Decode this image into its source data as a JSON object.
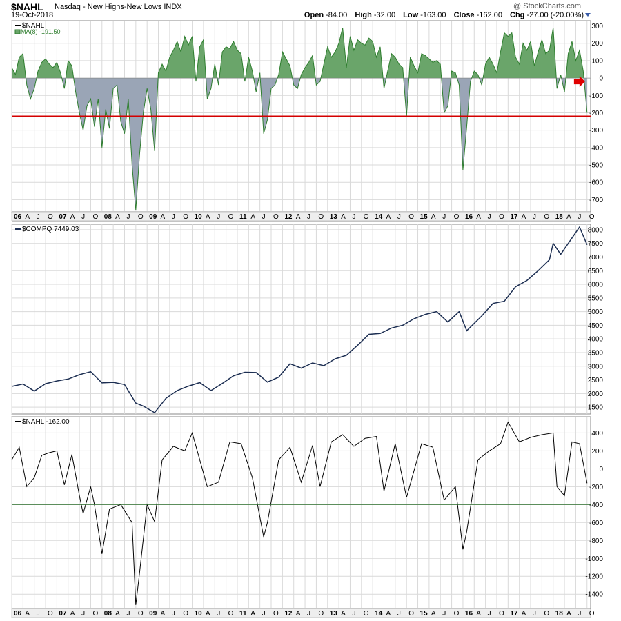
{
  "header": {
    "symbol": "$NAHL",
    "name": "Nasdaq - New Highs-New Lows INDX",
    "date": "19-Oct-2018",
    "credit": "@ StockCharts.com",
    "quote": {
      "open_label": "Open",
      "open": "-84.00",
      "high_label": "High",
      "high": "-32.00",
      "low_label": "Low",
      "low": "-163.00",
      "close_label": "Close",
      "close": "-162.00",
      "chg_label": "Chg",
      "chg": "-27.00 (-20.00%)"
    }
  },
  "x_axis": {
    "ticks": [
      "06",
      "A",
      "J",
      "O",
      "07",
      "A",
      "J",
      "O",
      "08",
      "A",
      "J",
      "O",
      "09",
      "A",
      "J",
      "O",
      "10",
      "A",
      "J",
      "O",
      "11",
      "A",
      "J",
      "O",
      "12",
      "A",
      "J",
      "O",
      "13",
      "A",
      "J",
      "O",
      "14",
      "A",
      "J",
      "O",
      "15",
      "A",
      "J",
      "O",
      "16",
      "A",
      "J",
      "O",
      "17",
      "A",
      "J",
      "O",
      "18",
      "A",
      "J",
      "O"
    ],
    "year_ticks": [
      "06",
      "07",
      "08",
      "09",
      "10",
      "11",
      "12",
      "13",
      "14",
      "15",
      "16",
      "17",
      "18"
    ]
  },
  "colors": {
    "positive_fill": "#6aa56a",
    "positive_line": "#2e7d2e",
    "negative_fill": "#9aa5b6",
    "negative_line": "#5a7a5a",
    "threshold_red": "#d40000",
    "compq_line": "#1c2e52",
    "threshold_green": "#2d6e2d",
    "arrow": "#e00000",
    "grid": "#d9d9d9"
  },
  "chart_data": [
    {
      "type": "area",
      "legend": "$NAHL",
      "legend2": "MA(8) -191.50",
      "series_note": "8-period moving average of $NAHL",
      "ylim": [
        -770,
        330
      ],
      "yticks": [
        300,
        200,
        100,
        0,
        -100,
        -200,
        -300,
        -400,
        -500,
        -600,
        -700
      ],
      "reference_line": -220,
      "last_value": -191.5,
      "points": [
        [
          "2006-01",
          60
        ],
        [
          "2006-02",
          20
        ],
        [
          "2006-03",
          120
        ],
        [
          "2006-04",
          140
        ],
        [
          "2006-05",
          -40
        ],
        [
          "2006-06",
          -120
        ],
        [
          "2006-07",
          -60
        ],
        [
          "2006-08",
          40
        ],
        [
          "2006-09",
          90
        ],
        [
          "2006-10",
          110
        ],
        [
          "2006-11",
          80
        ],
        [
          "2006-12",
          60
        ],
        [
          "2007-01",
          90
        ],
        [
          "2007-02",
          30
        ],
        [
          "2007-03",
          -60
        ],
        [
          "2007-04",
          100
        ],
        [
          "2007-05",
          70
        ],
        [
          "2007-06",
          -80
        ],
        [
          "2007-07",
          -200
        ],
        [
          "2007-08",
          -300
        ],
        [
          "2007-09",
          -160
        ],
        [
          "2007-10",
          -120
        ],
        [
          "2007-11",
          -280
        ],
        [
          "2007-12",
          -120
        ],
        [
          "2008-01",
          -400
        ],
        [
          "2008-02",
          -180
        ],
        [
          "2008-03",
          -290
        ],
        [
          "2008-04",
          -60
        ],
        [
          "2008-05",
          -40
        ],
        [
          "2008-06",
          -250
        ],
        [
          "2008-07",
          -320
        ],
        [
          "2008-08",
          -120
        ],
        [
          "2008-09",
          -500
        ],
        [
          "2008-10",
          -760
        ],
        [
          "2008-11",
          -440
        ],
        [
          "2008-12",
          -200
        ],
        [
          "2009-01",
          -60
        ],
        [
          "2009-02",
          -180
        ],
        [
          "2009-03",
          -420
        ],
        [
          "2009-04",
          30
        ],
        [
          "2009-05",
          80
        ],
        [
          "2009-06",
          40
        ],
        [
          "2009-07",
          120
        ],
        [
          "2009-08",
          160
        ],
        [
          "2009-09",
          210
        ],
        [
          "2009-10",
          150
        ],
        [
          "2009-11",
          240
        ],
        [
          "2009-12",
          190
        ],
        [
          "2010-01",
          240
        ],
        [
          "2010-02",
          -20
        ],
        [
          "2010-03",
          180
        ],
        [
          "2010-04",
          220
        ],
        [
          "2010-05",
          -120
        ],
        [
          "2010-06",
          -60
        ],
        [
          "2010-07",
          80
        ],
        [
          "2010-08",
          -40
        ],
        [
          "2010-09",
          150
        ],
        [
          "2010-10",
          180
        ],
        [
          "2010-11",
          170
        ],
        [
          "2010-12",
          210
        ],
        [
          "2011-01",
          160
        ],
        [
          "2011-02",
          140
        ],
        [
          "2011-03",
          -20
        ],
        [
          "2011-04",
          120
        ],
        [
          "2011-05",
          40
        ],
        [
          "2011-06",
          -80
        ],
        [
          "2011-07",
          30
        ],
        [
          "2011-08",
          -320
        ],
        [
          "2011-09",
          -240
        ],
        [
          "2011-10",
          -60
        ],
        [
          "2011-11",
          -40
        ],
        [
          "2011-12",
          20
        ],
        [
          "2012-01",
          150
        ],
        [
          "2012-02",
          110
        ],
        [
          "2012-03",
          70
        ],
        [
          "2012-04",
          -40
        ],
        [
          "2012-05",
          -60
        ],
        [
          "2012-06",
          20
        ],
        [
          "2012-07",
          60
        ],
        [
          "2012-08",
          90
        ],
        [
          "2012-09",
          130
        ],
        [
          "2012-10",
          -40
        ],
        [
          "2012-11",
          -20
        ],
        [
          "2012-12",
          80
        ],
        [
          "2013-01",
          180
        ],
        [
          "2013-02",
          120
        ],
        [
          "2013-03",
          150
        ],
        [
          "2013-04",
          200
        ],
        [
          "2013-05",
          290
        ],
        [
          "2013-06",
          60
        ],
        [
          "2013-07",
          240
        ],
        [
          "2013-08",
          160
        ],
        [
          "2013-09",
          220
        ],
        [
          "2013-10",
          200
        ],
        [
          "2013-11",
          190
        ],
        [
          "2013-12",
          230
        ],
        [
          "2014-01",
          210
        ],
        [
          "2014-02",
          120
        ],
        [
          "2014-03",
          180
        ],
        [
          "2014-04",
          -60
        ],
        [
          "2014-05",
          40
        ],
        [
          "2014-06",
          140
        ],
        [
          "2014-07",
          120
        ],
        [
          "2014-08",
          80
        ],
        [
          "2014-09",
          60
        ],
        [
          "2014-10",
          -220
        ],
        [
          "2014-11",
          120
        ],
        [
          "2014-12",
          70
        ],
        [
          "2015-01",
          30
        ],
        [
          "2015-02",
          140
        ],
        [
          "2015-03",
          130
        ],
        [
          "2015-04",
          110
        ],
        [
          "2015-05",
          90
        ],
        [
          "2015-06",
          100
        ],
        [
          "2015-07",
          80
        ],
        [
          "2015-08",
          -200
        ],
        [
          "2015-09",
          -160
        ],
        [
          "2015-10",
          40
        ],
        [
          "2015-11",
          30
        ],
        [
          "2015-12",
          -40
        ],
        [
          "2016-01",
          -530
        ],
        [
          "2016-02",
          -280
        ],
        [
          "2016-03",
          -20
        ],
        [
          "2016-04",
          40
        ],
        [
          "2016-05",
          20
        ],
        [
          "2016-06",
          -40
        ],
        [
          "2016-07",
          80
        ],
        [
          "2016-08",
          120
        ],
        [
          "2016-09",
          80
        ],
        [
          "2016-10",
          30
        ],
        [
          "2016-11",
          150
        ],
        [
          "2016-12",
          260
        ],
        [
          "2017-01",
          240
        ],
        [
          "2017-02",
          260
        ],
        [
          "2017-03",
          120
        ],
        [
          "2017-04",
          80
        ],
        [
          "2017-05",
          200
        ],
        [
          "2017-06",
          160
        ],
        [
          "2017-07",
          210
        ],
        [
          "2017-08",
          70
        ],
        [
          "2017-09",
          150
        ],
        [
          "2017-10",
          220
        ],
        [
          "2017-11",
          140
        ],
        [
          "2017-12",
          160
        ],
        [
          "2018-01",
          290
        ],
        [
          "2018-02",
          -60
        ],
        [
          "2018-03",
          20
        ],
        [
          "2018-04",
          -80
        ],
        [
          "2018-05",
          140
        ],
        [
          "2018-06",
          210
        ],
        [
          "2018-07",
          100
        ],
        [
          "2018-08",
          160
        ],
        [
          "2018-09",
          40
        ],
        [
          "2018-10",
          -200
        ]
      ]
    },
    {
      "type": "line",
      "legend": "$COMPQ 7449.03",
      "ylim": [
        1250,
        8200
      ],
      "yticks": [
        8000,
        7500,
        7000,
        6500,
        6000,
        5500,
        5000,
        4500,
        4000,
        3500,
        3000,
        2500,
        2000,
        1500
      ],
      "points": [
        [
          "2006-01",
          2260
        ],
        [
          "2006-04",
          2350
        ],
        [
          "2006-07",
          2090
        ],
        [
          "2006-10",
          2360
        ],
        [
          "2007-01",
          2460
        ],
        [
          "2007-04",
          2530
        ],
        [
          "2007-07",
          2690
        ],
        [
          "2007-10",
          2800
        ],
        [
          "2008-01",
          2390
        ],
        [
          "2008-04",
          2410
        ],
        [
          "2008-07",
          2330
        ],
        [
          "2008-10",
          1650
        ],
        [
          "2008-12",
          1540
        ],
        [
          "2009-03",
          1300
        ],
        [
          "2009-06",
          1820
        ],
        [
          "2009-09",
          2110
        ],
        [
          "2009-12",
          2270
        ],
        [
          "2010-03",
          2400
        ],
        [
          "2010-06",
          2110
        ],
        [
          "2010-09",
          2370
        ],
        [
          "2010-12",
          2650
        ],
        [
          "2011-03",
          2780
        ],
        [
          "2011-06",
          2770
        ],
        [
          "2011-09",
          2420
        ],
        [
          "2011-12",
          2600
        ],
        [
          "2012-03",
          3090
        ],
        [
          "2012-06",
          2930
        ],
        [
          "2012-09",
          3120
        ],
        [
          "2012-12",
          3020
        ],
        [
          "2013-03",
          3270
        ],
        [
          "2013-06",
          3400
        ],
        [
          "2013-09",
          3770
        ],
        [
          "2013-12",
          4170
        ],
        [
          "2014-03",
          4200
        ],
        [
          "2014-06",
          4400
        ],
        [
          "2014-09",
          4500
        ],
        [
          "2014-12",
          4740
        ],
        [
          "2015-03",
          4900
        ],
        [
          "2015-06",
          5000
        ],
        [
          "2015-09",
          4620
        ],
        [
          "2015-12",
          5000
        ],
        [
          "2016-02",
          4300
        ],
        [
          "2016-06",
          4840
        ],
        [
          "2016-09",
          5300
        ],
        [
          "2016-12",
          5380
        ],
        [
          "2017-03",
          5910
        ],
        [
          "2017-06",
          6140
        ],
        [
          "2017-09",
          6500
        ],
        [
          "2017-12",
          6900
        ],
        [
          "2018-01",
          7500
        ],
        [
          "2018-03",
          7100
        ],
        [
          "2018-06",
          7700
        ],
        [
          "2018-08",
          8100
        ],
        [
          "2018-10",
          7449.03
        ]
      ]
    },
    {
      "type": "line",
      "legend": "$NAHL -162.00",
      "ylim": [
        -1560,
        580
      ],
      "yticks": [
        400,
        200,
        0,
        -200,
        -400,
        -600,
        -800,
        -1000,
        -1200,
        -1400
      ],
      "reference_line": -400,
      "last_value": -162.0,
      "points": [
        [
          "2006-01",
          100
        ],
        [
          "2006-03",
          240
        ],
        [
          "2006-05",
          -200
        ],
        [
          "2006-07",
          -100
        ],
        [
          "2006-09",
          150
        ],
        [
          "2006-11",
          180
        ],
        [
          "2007-01",
          200
        ],
        [
          "2007-03",
          -180
        ],
        [
          "2007-05",
          160
        ],
        [
          "2007-07",
          -300
        ],
        [
          "2007-08",
          -500
        ],
        [
          "2007-10",
          -200
        ],
        [
          "2007-11",
          -400
        ],
        [
          "2008-01",
          -950
        ],
        [
          "2008-03",
          -450
        ],
        [
          "2008-06",
          -400
        ],
        [
          "2008-09",
          -600
        ],
        [
          "2008-10",
          -1520
        ],
        [
          "2008-11",
          -1160
        ],
        [
          "2009-01",
          -400
        ],
        [
          "2009-03",
          -590
        ],
        [
          "2009-05",
          100
        ],
        [
          "2009-08",
          250
        ],
        [
          "2009-11",
          200
        ],
        [
          "2010-01",
          400
        ],
        [
          "2010-05",
          -200
        ],
        [
          "2010-08",
          -150
        ],
        [
          "2010-11",
          300
        ],
        [
          "2011-02",
          280
        ],
        [
          "2011-05",
          -100
        ],
        [
          "2011-08",
          -760
        ],
        [
          "2011-09",
          -600
        ],
        [
          "2011-12",
          100
        ],
        [
          "2012-03",
          240
        ],
        [
          "2012-06",
          -150
        ],
        [
          "2012-09",
          260
        ],
        [
          "2012-11",
          -200
        ],
        [
          "2013-02",
          300
        ],
        [
          "2013-05",
          380
        ],
        [
          "2013-08",
          250
        ],
        [
          "2013-11",
          340
        ],
        [
          "2014-02",
          360
        ],
        [
          "2014-04",
          -250
        ],
        [
          "2014-07",
          280
        ],
        [
          "2014-10",
          -320
        ],
        [
          "2015-02",
          280
        ],
        [
          "2015-05",
          240
        ],
        [
          "2015-08",
          -350
        ],
        [
          "2015-11",
          -200
        ],
        [
          "2016-01",
          -900
        ],
        [
          "2016-02",
          -700
        ],
        [
          "2016-05",
          100
        ],
        [
          "2016-08",
          200
        ],
        [
          "2016-11",
          280
        ],
        [
          "2017-01",
          520
        ],
        [
          "2017-04",
          300
        ],
        [
          "2017-07",
          350
        ],
        [
          "2017-10",
          380
        ],
        [
          "2018-01",
          400
        ],
        [
          "2018-02",
          -200
        ],
        [
          "2018-04",
          -300
        ],
        [
          "2018-06",
          300
        ],
        [
          "2018-08",
          280
        ],
        [
          "2018-10",
          -162
        ]
      ]
    }
  ]
}
